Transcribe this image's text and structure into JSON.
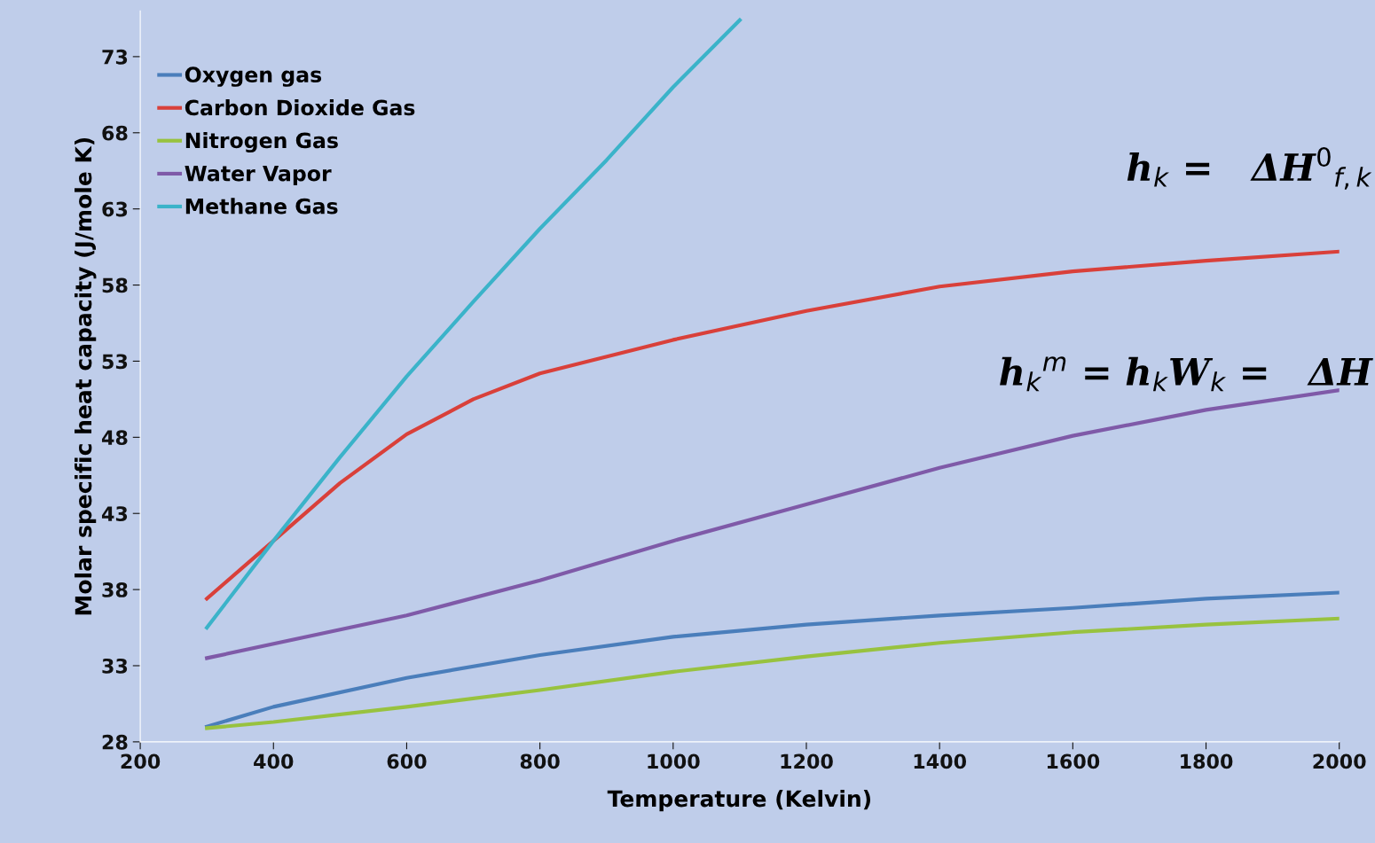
{
  "chart_data": {
    "type": "line",
    "xlabel": "Temperature (Kelvin)",
    "ylabel": "Molar specific heat capacity (J/mole K)",
    "xlim": [
      200,
      2000
    ],
    "xticks": [
      200,
      400,
      600,
      800,
      1000,
      1200,
      1400,
      1600,
      1800,
      2000
    ],
    "ylim": [
      28,
      76
    ],
    "yticks": [
      28,
      33,
      38,
      43,
      48,
      53,
      58,
      63,
      68,
      73
    ],
    "grid": false,
    "legend": "top left",
    "marker": "none",
    "line_style": "solid",
    "annotations": [
      "h$_{k}$ =   ΔH$^{0}$$_{f,k}$",
      "h$_{k}$$^{m}$ = h$_{k}$W$_{k}$ =   ΔH"
    ],
    "series": [
      {
        "name": "Oxygen gas",
        "color": "#4a7ebb",
        "x": [
          300,
          400,
          600,
          800,
          1000,
          1200,
          1400,
          1600,
          1800,
          2000
        ],
        "values": [
          29.0,
          30.3,
          32.2,
          33.7,
          34.9,
          35.7,
          36.3,
          36.8,
          37.4,
          37.8
        ]
      },
      {
        "name": "Carbon Dioxide Gas",
        "color": "#d9403a",
        "x": [
          300,
          400,
          500,
          600,
          700,
          800,
          1000,
          1200,
          1400,
          1600,
          1800,
          2000
        ],
        "values": [
          37.4,
          41.2,
          45.0,
          48.2,
          50.5,
          52.2,
          54.4,
          56.3,
          57.9,
          58.9,
          59.6,
          60.2
        ]
      },
      {
        "name": "Nitrogen Gas",
        "color": "#98c23f",
        "x": [
          300,
          400,
          600,
          800,
          1000,
          1200,
          1400,
          1600,
          1800,
          2000
        ],
        "values": [
          28.9,
          29.3,
          30.3,
          31.4,
          32.6,
          33.6,
          34.5,
          35.2,
          35.7,
          36.1
        ]
      },
      {
        "name": "Water Vapor",
        "color": "#7f5aa8",
        "x": [
          300,
          600,
          800,
          1000,
          1200,
          1400,
          1600,
          1800,
          2000
        ],
        "values": [
          33.5,
          36.3,
          38.6,
          41.2,
          43.6,
          46.0,
          48.1,
          49.8,
          51.1
        ]
      },
      {
        "name": "Methane Gas",
        "color": "#3bb3c9",
        "x": [
          300,
          400,
          500,
          600,
          700,
          800,
          900,
          1000,
          1100
        ],
        "values": [
          35.5,
          41.2,
          46.7,
          52.0,
          56.9,
          61.7,
          66.2,
          71.0,
          75.4
        ]
      }
    ]
  }
}
